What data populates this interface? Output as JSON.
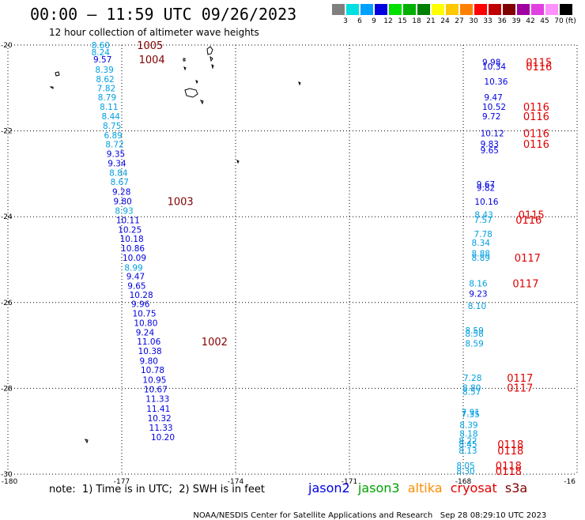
{
  "header": {
    "title": "00:00 – 11:59 UTC 09/26/2023",
    "subtitle": "12 hour collection of altimeter wave heights"
  },
  "color_scale": {
    "unit_label": "(ft)",
    "entries": [
      {
        "label": "3",
        "color": "#808080"
      },
      {
        "label": "6",
        "color": "#00e0e0"
      },
      {
        "label": "9",
        "color": "#00a0ff"
      },
      {
        "label": "12",
        "color": "#0000e0"
      },
      {
        "label": "15",
        "color": "#00e000"
      },
      {
        "label": "18",
        "color": "#00b000"
      },
      {
        "label": "21",
        "color": "#008000"
      },
      {
        "label": "24",
        "color": "#ffff00"
      },
      {
        "label": "27",
        "color": "#ffc800"
      },
      {
        "label": "30",
        "color": "#ff8000"
      },
      {
        "label": "33",
        "color": "#ff0000"
      },
      {
        "label": "36",
        "color": "#c00000"
      },
      {
        "label": "39",
        "color": "#800000"
      },
      {
        "label": "42",
        "color": "#a000a0"
      },
      {
        "label": "45",
        "color": "#e040e0"
      },
      {
        "label": "70",
        "color": "#ff90ff"
      },
      {
        "label": "",
        "color": "#000000"
      }
    ]
  },
  "axes": {
    "lat_ticks": [
      "-20",
      "-22",
      "-24",
      "-26",
      "-28",
      "-30"
    ],
    "lon_ticks": [
      "-180",
      "-177",
      "-174",
      "-171",
      "-168",
      "-16"
    ]
  },
  "tracks": [
    {
      "id": "west",
      "points": [
        {
          "t": "8.60",
          "c": "#00a0e0",
          "lat": -20.0,
          "lon": -177.8
        },
        {
          "t": "8.24",
          "c": "#00a0e0",
          "lat": -20.17,
          "lon": -177.8
        },
        {
          "t": "9.57",
          "c": "#0000e0",
          "lat": -20.33,
          "lon": -177.75
        },
        {
          "t": "8.39",
          "c": "#00a0e0",
          "lat": -20.57,
          "lon": -177.7
        },
        {
          "t": "8.62",
          "c": "#00a0e0",
          "lat": -20.79,
          "lon": -177.68
        },
        {
          "t": "7.82",
          "c": "#00a0e0",
          "lat": -21.0,
          "lon": -177.65
        },
        {
          "t": "8.79",
          "c": "#00a0e0",
          "lat": -21.22,
          "lon": -177.63
        },
        {
          "t": "8.11",
          "c": "#00a0e0",
          "lat": -21.44,
          "lon": -177.58
        },
        {
          "t": "8.44",
          "c": "#00a0e0",
          "lat": -21.66,
          "lon": -177.53
        },
        {
          "t": "8.75",
          "c": "#00a0e0",
          "lat": -21.88,
          "lon": -177.5
        },
        {
          "t": "6.89",
          "c": "#00a0e0",
          "lat": -22.1,
          "lon": -177.47
        },
        {
          "t": "8.72",
          "c": "#00a0e0",
          "lat": -22.31,
          "lon": -177.43
        },
        {
          "t": "9.35",
          "c": "#0000e0",
          "lat": -22.53,
          "lon": -177.4
        },
        {
          "t": "9.34",
          "c": "#0000e0",
          "lat": -22.75,
          "lon": -177.37
        },
        {
          "t": "8.84",
          "c": "#00a0e0",
          "lat": -22.97,
          "lon": -177.33
        },
        {
          "t": "8.67",
          "c": "#00a0e0",
          "lat": -23.19,
          "lon": -177.3
        },
        {
          "t": "9.28",
          "c": "#0000e0",
          "lat": -23.42,
          "lon": -177.25
        },
        {
          "t": "9.80",
          "c": "#0000e0",
          "lat": -23.64,
          "lon": -177.22
        },
        {
          "t": "8.93",
          "c": "#00a0e0",
          "lat": -23.86,
          "lon": -177.18
        },
        {
          "t": "10.11",
          "c": "#0000e0",
          "lat": -24.08,
          "lon": -177.15
        },
        {
          "t": "10.25",
          "c": "#0000e0",
          "lat": -24.3,
          "lon": -177.1
        },
        {
          "t": "10.18",
          "c": "#0000e0",
          "lat": -24.51,
          "lon": -177.05
        },
        {
          "t": "10.86",
          "c": "#0000e0",
          "lat": -24.73,
          "lon": -177.02
        },
        {
          "t": "10.09",
          "c": "#0000e0",
          "lat": -24.95,
          "lon": -176.98
        },
        {
          "t": "8.99",
          "c": "#00a0e0",
          "lat": -25.18,
          "lon": -176.93
        },
        {
          "t": "9.47",
          "c": "#0000e0",
          "lat": -25.39,
          "lon": -176.88
        },
        {
          "t": "9.65",
          "c": "#0000e0",
          "lat": -25.61,
          "lon": -176.85
        },
        {
          "t": "10.28",
          "c": "#0000e0",
          "lat": -25.82,
          "lon": -176.8
        },
        {
          "t": "9.96",
          "c": "#0000e0",
          "lat": -26.03,
          "lon": -176.75
        },
        {
          "t": "10.75",
          "c": "#0000e0",
          "lat": -26.25,
          "lon": -176.72
        },
        {
          "t": "10.80",
          "c": "#0000e0",
          "lat": -26.47,
          "lon": -176.68
        },
        {
          "t": "9.24",
          "c": "#0000e0",
          "lat": -26.69,
          "lon": -176.63
        },
        {
          "t": "11.06",
          "c": "#0000e0",
          "lat": -26.91,
          "lon": -176.6
        },
        {
          "t": "10.38",
          "c": "#0000e0",
          "lat": -27.13,
          "lon": -176.57
        },
        {
          "t": "9.80",
          "c": "#0000e0",
          "lat": -27.36,
          "lon": -176.53
        },
        {
          "t": "10.78",
          "c": "#0000e0",
          "lat": -27.57,
          "lon": -176.5
        },
        {
          "t": "10.95",
          "c": "#0000e0",
          "lat": -27.8,
          "lon": -176.45
        },
        {
          "t": "10.67",
          "c": "#0000e0",
          "lat": -28.02,
          "lon": -176.42
        },
        {
          "t": "11.33",
          "c": "#0000e0",
          "lat": -28.24,
          "lon": -176.37
        },
        {
          "t": "11.41",
          "c": "#0000e0",
          "lat": -28.47,
          "lon": -176.35
        },
        {
          "t": "10.32",
          "c": "#0000e0",
          "lat": -28.69,
          "lon": -176.32
        },
        {
          "t": "11.33",
          "c": "#0000e0",
          "lat": -28.91,
          "lon": -176.28
        },
        {
          "t": "10.20",
          "c": "#0000e0",
          "lat": -29.13,
          "lon": -176.23
        }
      ]
    },
    {
      "id": "east",
      "points": [
        {
          "t": "9.98",
          "c": "#0000e0",
          "lat": -20.4,
          "lon": -167.5
        },
        {
          "t": "10.34",
          "c": "#0000e0",
          "lat": -20.5,
          "lon": -167.5
        },
        {
          "t": "10.36",
          "c": "#0000e0",
          "lat": -20.85,
          "lon": -167.45
        },
        {
          "t": "9.47",
          "c": "#0000e0",
          "lat": -21.22,
          "lon": -167.45
        },
        {
          "t": "10.52",
          "c": "#0000e0",
          "lat": -21.44,
          "lon": -167.5
        },
        {
          "t": "9.72",
          "c": "#0000e0",
          "lat": -21.66,
          "lon": -167.5
        },
        {
          "t": "10.12",
          "c": "#0000e0",
          "lat": -22.05,
          "lon": -167.55
        },
        {
          "t": "9.83",
          "c": "#0000e0",
          "lat": -22.3,
          "lon": -167.55
        },
        {
          "t": "9.65",
          "c": "#0000e0",
          "lat": -22.45,
          "lon": -167.55
        },
        {
          "t": "9.67",
          "c": "#0000e0",
          "lat": -23.24,
          "lon": -167.65
        },
        {
          "t": "9.82",
          "c": "#0000e0",
          "lat": -23.32,
          "lon": -167.65
        },
        {
          "t": "10.16",
          "c": "#0000e0",
          "lat": -23.65,
          "lon": -167.7
        },
        {
          "t": "8.43",
          "c": "#00a0e0",
          "lat": -23.95,
          "lon": -167.7
        },
        {
          "t": "7.57",
          "c": "#00a0e0",
          "lat": -24.07,
          "lon": -167.72
        },
        {
          "t": "7.78",
          "c": "#00a0e0",
          "lat": -24.4,
          "lon": -167.72
        },
        {
          "t": "8.34",
          "c": "#00a0e0",
          "lat": -24.6,
          "lon": -167.78
        },
        {
          "t": "8.88",
          "c": "#00a0e0",
          "lat": -24.85,
          "lon": -167.78
        },
        {
          "t": "8.89",
          "c": "#00a0e0",
          "lat": -24.95,
          "lon": -167.78
        },
        {
          "t": "8.16",
          "c": "#00a0e0",
          "lat": -25.55,
          "lon": -167.85
        },
        {
          "t": "9.23",
          "c": "#0000e0",
          "lat": -25.79,
          "lon": -167.85
        },
        {
          "t": "8.10",
          "c": "#00a0e0",
          "lat": -26.08,
          "lon": -167.88
        },
        {
          "t": "8.59",
          "c": "#00a0e0",
          "lat": -26.65,
          "lon": -167.95
        },
        {
          "t": "8.58",
          "c": "#00a0e0",
          "lat": -26.72,
          "lon": -167.95
        },
        {
          "t": "8.59",
          "c": "#00a0e0",
          "lat": -26.95,
          "lon": -167.95
        },
        {
          "t": "7.28",
          "c": "#00a0e0",
          "lat": -27.75,
          "lon": -168.0
        },
        {
          "t": "8.80",
          "c": "#00a0e0",
          "lat": -27.98,
          "lon": -168.02
        },
        {
          "t": "8.57",
          "c": "#00a0e0",
          "lat": -28.08,
          "lon": -168.02
        },
        {
          "t": "7.91",
          "c": "#00a0e0",
          "lat": -28.55,
          "lon": -168.05
        },
        {
          "t": "7.35",
          "c": "#00a0e0",
          "lat": -28.6,
          "lon": -168.05
        },
        {
          "t": "8.39",
          "c": "#00a0e0",
          "lat": -28.85,
          "lon": -168.1
        },
        {
          "t": "8.18",
          "c": "#00a0e0",
          "lat": -29.05,
          "lon": -168.1
        },
        {
          "t": "8.22",
          "c": "#00a0e0",
          "lat": -29.22,
          "lon": -168.12
        },
        {
          "t": "8.45",
          "c": "#00a0e0",
          "lat": -29.3,
          "lon": -168.12
        },
        {
          "t": "8.13",
          "c": "#00a0e0",
          "lat": -29.45,
          "lon": -168.12
        },
        {
          "t": "8.05",
          "c": "#00a0e0",
          "lat": -29.8,
          "lon": -168.18
        },
        {
          "t": "8.30",
          "c": "#00a0e0",
          "lat": -29.93,
          "lon": -168.18
        }
      ]
    }
  ],
  "time_labels": [
    {
      "t": "1005",
      "c": "#800000",
      "lat": -20.0,
      "lon": -176.6
    },
    {
      "t": "1004",
      "c": "#800000",
      "lat": -20.33,
      "lon": -176.55
    },
    {
      "t": "1003",
      "c": "#800000",
      "lat": -23.64,
      "lon": -175.8
    },
    {
      "t": "1002",
      "c": "#800000",
      "lat": -26.91,
      "lon": -174.9
    },
    {
      "t": "0115",
      "c": "#e00000",
      "lat": -20.4,
      "lon": -166.35
    },
    {
      "t": "0116",
      "c": "#e00000",
      "lat": -20.5,
      "lon": -166.35
    },
    {
      "t": "0116",
      "c": "#e00000",
      "lat": -21.44,
      "lon": -166.42
    },
    {
      "t": "0116",
      "c": "#e00000",
      "lat": -21.66,
      "lon": -166.42
    },
    {
      "t": "0116",
      "c": "#e00000",
      "lat": -22.05,
      "lon": -166.42
    },
    {
      "t": "0116",
      "c": "#e00000",
      "lat": -22.3,
      "lon": -166.42
    },
    {
      "t": "0115",
      "c": "#e00000",
      "lat": -23.95,
      "lon": -166.55
    },
    {
      "t": "0116",
      "c": "#e00000",
      "lat": -24.07,
      "lon": -166.62
    },
    {
      "t": "0117",
      "c": "#e00000",
      "lat": -24.95,
      "lon": -166.65
    },
    {
      "t": "0117",
      "c": "#e00000",
      "lat": -25.55,
      "lon": -166.7
    },
    {
      "t": "0117",
      "c": "#e00000",
      "lat": -27.75,
      "lon": -166.85
    },
    {
      "t": "0117",
      "c": "#e00000",
      "lat": -27.98,
      "lon": -166.85
    },
    {
      "t": "0118",
      "c": "#e00000",
      "lat": -29.3,
      "lon": -167.1
    },
    {
      "t": "0118",
      "c": "#e00000",
      "lat": -29.45,
      "lon": -167.1
    },
    {
      "t": "0118",
      "c": "#e00000",
      "lat": -29.8,
      "lon": -167.15
    },
    {
      "t": "0118",
      "c": "#e00000",
      "lat": -29.93,
      "lon": -167.15
    }
  ],
  "note": "note:  1) Time is in UTC;  2) SWH is in feet",
  "satellites": [
    {
      "name": "jason2",
      "color": "#0000e0"
    },
    {
      "name": "jason3",
      "color": "#00a000"
    },
    {
      "name": "altika",
      "color": "#ff8c00"
    },
    {
      "name": "cryosat",
      "color": "#e00000"
    },
    {
      "name": "s3a",
      "color": "#800000"
    }
  ],
  "footer": {
    "agency": "NOAA/NESDIS Center for Satellite Applications and Research",
    "generated": "Sep 28 08:29:10 UTC 2023"
  }
}
